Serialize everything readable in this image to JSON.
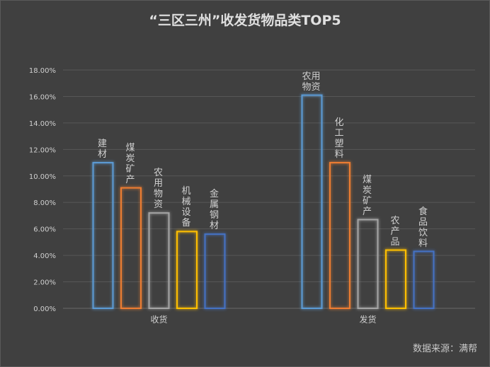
{
  "chart_data": {
    "type": "bar",
    "title": "“三区三州”收发货物品类TOP5",
    "ylim": [
      0,
      18
    ],
    "yticks": [
      "0.00%",
      "2.00%",
      "4.00%",
      "6.00%",
      "8.00%",
      "10.00%",
      "12.00%",
      "14.00%",
      "16.00%",
      "18.00%"
    ],
    "grid": true,
    "groups": [
      {
        "name": "收货",
        "bars": [
          {
            "label": "建材",
            "value": 11.0,
            "color": "#5B9BD5"
          },
          {
            "label": "煤炭矿产",
            "value": 9.1,
            "color": "#ED7D31"
          },
          {
            "label": "农用物资",
            "value": 7.2,
            "color": "#A5A5A5"
          },
          {
            "label": "机械设备",
            "value": 5.8,
            "color": "#FFC000"
          },
          {
            "label": "金属钢材",
            "value": 5.6,
            "color": "#4472C4"
          }
        ]
      },
      {
        "name": "发货",
        "bars": [
          {
            "label": "农用物资",
            "value": 16.1,
            "color": "#5B9BD5"
          },
          {
            "label": "化工塑料",
            "value": 11.0,
            "color": "#ED7D31"
          },
          {
            "label": "煤炭矿产",
            "value": 6.7,
            "color": "#A5A5A5"
          },
          {
            "label": "农产品",
            "value": 4.4,
            "color": "#FFC000"
          },
          {
            "label": "食品饮料",
            "value": 4.3,
            "color": "#4472C4"
          }
        ]
      }
    ]
  },
  "source": "数据来源：满帮"
}
